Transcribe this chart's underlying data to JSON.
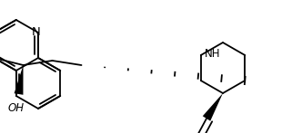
{
  "bg_color": "#ffffff",
  "line_color": "#000000",
  "line_width": 1.3,
  "text_color": "#000000",
  "font_size": 8.5,
  "xlim": [
    0,
    332
  ],
  "ylim": [
    0,
    147
  ]
}
